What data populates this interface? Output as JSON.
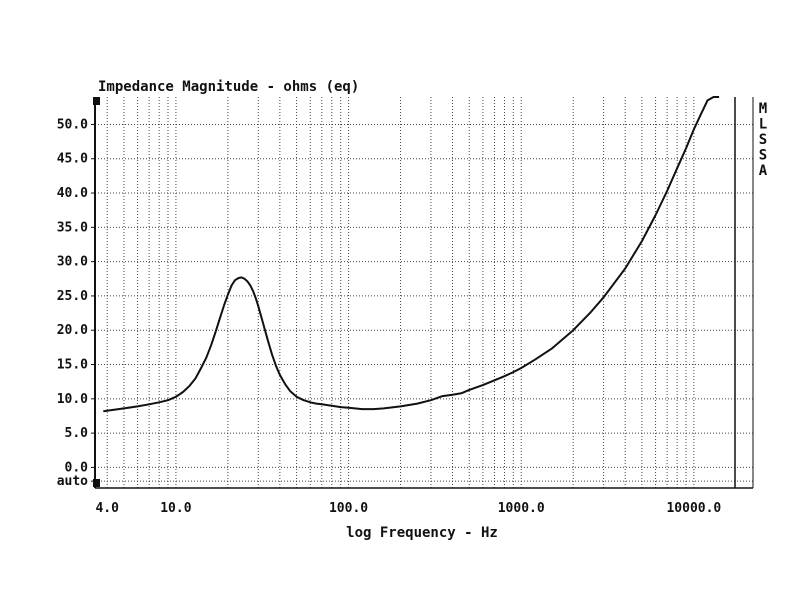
{
  "chart_data": {
    "type": "line",
    "title": "Impedance Magnitude - ohms (eq)",
    "xlabel": "log Frequency - Hz",
    "ylabel": "",
    "x_scale": "log",
    "xlim": [
      3.4,
      22000
    ],
    "ylim": [
      -3.0,
      54.0
    ],
    "x_ticks": [
      {
        "value": 4,
        "label": "4.0"
      },
      {
        "value": 10,
        "label": "10.0"
      },
      {
        "value": 100,
        "label": "100.0"
      },
      {
        "value": 1000,
        "label": "1000.0"
      },
      {
        "value": 10000,
        "label": "10000.0"
      }
    ],
    "y_ticks": [
      {
        "value": 50,
        "label": "50.0"
      },
      {
        "value": 45,
        "label": "45.0"
      },
      {
        "value": 40,
        "label": "40.0"
      },
      {
        "value": 35,
        "label": "35.0"
      },
      {
        "value": 30,
        "label": "30.0"
      },
      {
        "value": 25,
        "label": "25.0"
      },
      {
        "value": 20,
        "label": "20.0"
      },
      {
        "value": 15,
        "label": "15.0"
      },
      {
        "value": 10,
        "label": "10.0"
      },
      {
        "value": 5,
        "label": "5.0"
      },
      {
        "value": 0,
        "label": "0.0"
      },
      {
        "value": -2,
        "label": "auto"
      }
    ],
    "grid": true,
    "side_letters": [
      "M",
      "L",
      "S",
      "S",
      "A"
    ],
    "series": [
      {
        "color": "#111111",
        "x": [
          3.8,
          5,
          6,
          7,
          8,
          9,
          10,
          11,
          12,
          13,
          14,
          15,
          16,
          17,
          18,
          19,
          20,
          21,
          22,
          23,
          24,
          25,
          26,
          27,
          28,
          29,
          30,
          32,
          34,
          36,
          38,
          40,
          43,
          46,
          50,
          55,
          60,
          65,
          70,
          80,
          90,
          100,
          120,
          140,
          160,
          200,
          250,
          300,
          350,
          400,
          450,
          500,
          600,
          700,
          800,
          900,
          1000,
          1200,
          1500,
          2000,
          2500,
          3000,
          4000,
          5000,
          6000,
          7000,
          8000,
          9000,
          10000,
          11000,
          12000,
          13000,
          14000
        ],
        "y": [
          8.2,
          8.6,
          8.9,
          9.2,
          9.5,
          9.8,
          10.3,
          11.0,
          11.9,
          13.0,
          14.5,
          16.0,
          17.8,
          19.8,
          21.8,
          23.6,
          25.2,
          26.5,
          27.3,
          27.6,
          27.7,
          27.5,
          27.1,
          26.5,
          25.7,
          24.7,
          23.5,
          21.0,
          18.6,
          16.5,
          14.8,
          13.5,
          12.1,
          11.1,
          10.3,
          9.8,
          9.5,
          9.3,
          9.2,
          9.0,
          8.8,
          8.7,
          8.5,
          8.5,
          8.6,
          8.9,
          9.3,
          9.8,
          10.4,
          10.6,
          10.8,
          11.3,
          12.0,
          12.7,
          13.3,
          13.9,
          14.5,
          15.7,
          17.3,
          20.0,
          22.5,
          24.8,
          29.0,
          33.0,
          36.8,
          40.3,
          43.6,
          46.5,
          49.3,
          51.5,
          53.5,
          55.0,
          55.5
        ]
      }
    ]
  }
}
